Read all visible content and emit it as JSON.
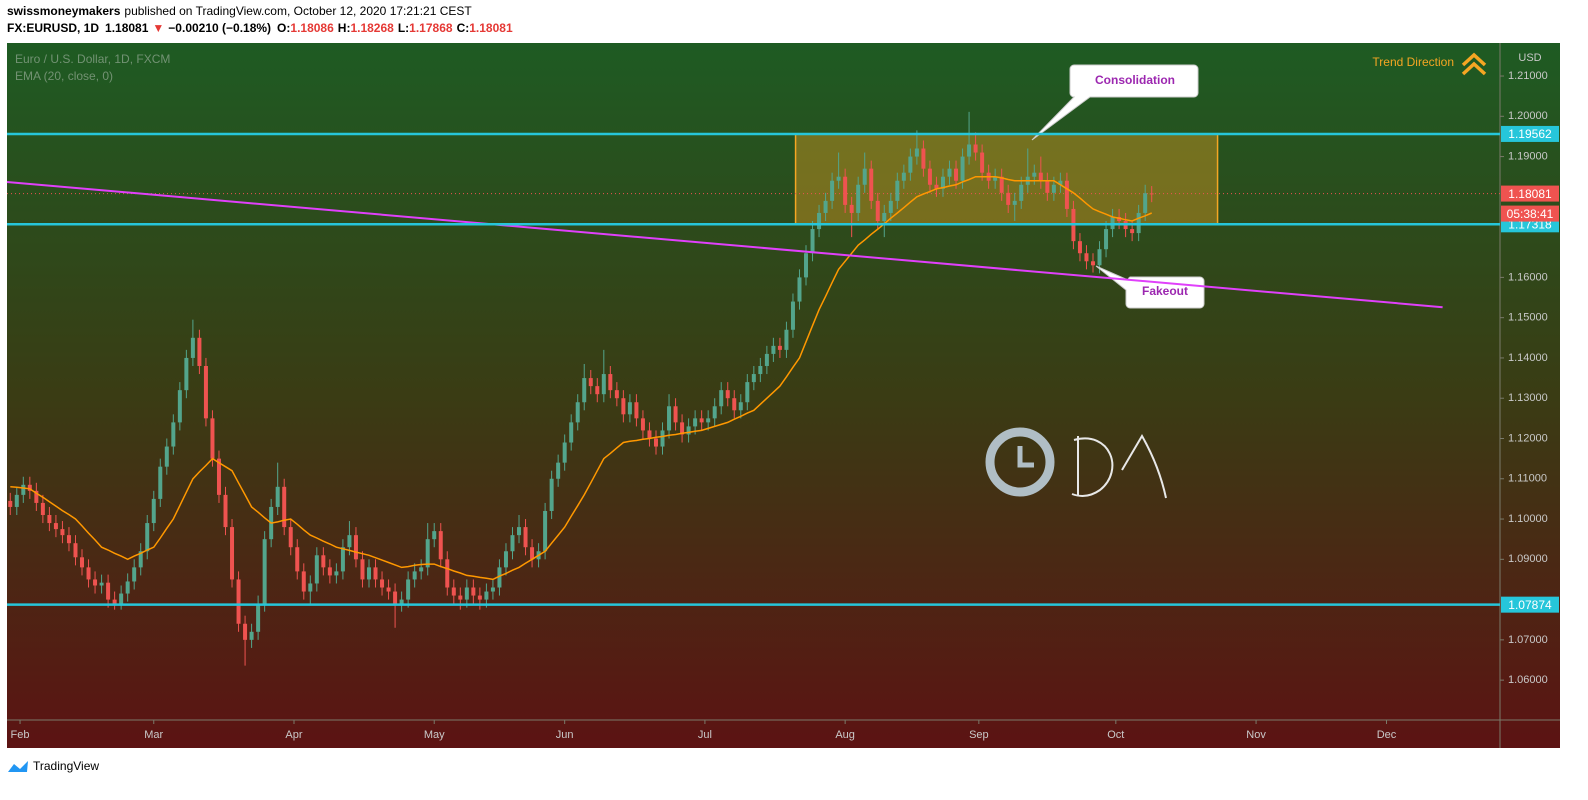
{
  "header": {
    "author": "swissmoneymakers",
    "published": "published on TradingView.com, October 12, 2020 17:21:21 CEST",
    "symbol": "FX:EURUSD, 1D",
    "last": 1.18081,
    "arrow": "▼",
    "change": "−0.00210 (−0.18%)",
    "ohlc": [
      {
        "label": "O:",
        "value": 1.18086
      },
      {
        "label": "H:",
        "value": 1.18268
      },
      {
        "label": "L:",
        "value": 1.17868
      },
      {
        "label": "C:",
        "value": 1.18081
      }
    ]
  },
  "footer": {
    "brand": "TradingView"
  },
  "chart_data": {
    "type": "candlestick",
    "title": "Euro / U.S. Dollar, 1D, FXCM",
    "y_unit": "USD",
    "up_color": "#53a58c",
    "down_color": "#ef5350",
    "open": [
      1.1045,
      1.103,
      1.106,
      1.1085,
      1.107,
      1.104,
      1.101,
      1.099,
      1.0975,
      1.096,
      1.094,
      1.0905,
      1.088,
      1.085,
      1.0835,
      1.0842,
      1.08,
      1.079,
      1.0815,
      1.0845,
      1.088,
      1.092,
      1.099,
      1.105,
      1.113,
      1.118,
      1.124,
      1.132,
      1.14,
      1.145,
      1.138,
      1.125,
      1.115,
      1.106,
      1.098,
      1.085,
      1.074,
      1.07,
      1.072,
      1.079,
      1.095,
      1.103,
      1.108,
      1.098,
      1.093,
      1.087,
      1.082,
      1.084,
      1.091,
      1.088,
      1.086,
      1.087,
      1.093,
      1.096,
      1.09,
      1.085,
      1.088,
      1.085,
      1.083,
      1.082,
      1.079,
      1.08,
      1.085,
      1.087,
      1.088,
      1.095,
      1.097,
      1.09,
      1.083,
      1.081,
      1.08,
      1.083,
      1.081,
      1.08,
      1.082,
      1.083,
      1.088,
      1.092,
      1.096,
      1.098,
      1.093,
      1.09,
      1.092,
      1.102,
      1.11,
      1.114,
      1.119,
      1.124,
      1.129,
      1.135,
      1.133,
      1.131,
      1.136,
      1.132,
      1.13,
      1.126,
      1.129,
      1.125,
      1.122,
      1.12,
      1.118,
      1.122,
      1.128,
      1.124,
      1.121,
      1.123,
      1.125,
      1.124,
      1.125,
      1.128,
      1.132,
      1.13,
      1.127,
      1.129,
      1.134,
      1.136,
      1.138,
      1.141,
      1.143,
      1.142,
      1.147,
      1.154,
      1.16,
      1.166,
      1.172,
      1.176,
      1.179,
      1.184,
      1.185,
      1.178,
      1.176,
      1.183,
      1.187,
      1.179,
      1.174,
      1.176,
      1.179,
      1.184,
      1.186,
      1.19,
      1.192,
      1.187,
      1.183,
      1.182,
      1.185,
      1.187,
      1.184,
      1.19,
      1.193,
      1.191,
      1.186,
      1.184,
      1.185,
      1.181,
      1.178,
      1.179,
      1.183,
      1.185,
      1.186,
      1.184,
      1.181,
      1.183,
      1.184,
      1.177,
      1.169,
      1.166,
      1.164,
      1.163,
      1.167,
      1.172,
      1.175,
      1.174,
      1.172,
      1.171,
      1.176,
      1.18086
    ],
    "high": [
      1.1065,
      1.108,
      1.1105,
      1.1105,
      1.109,
      1.106,
      1.103,
      1.101,
      1.0995,
      1.098,
      1.096,
      1.0925,
      1.09,
      1.087,
      1.0862,
      1.0862,
      1.082,
      1.0835,
      1.0865,
      1.09,
      1.094,
      1.101,
      1.107,
      1.115,
      1.12,
      1.126,
      1.134,
      1.142,
      1.1495,
      1.147,
      1.14,
      1.127,
      1.117,
      1.108,
      1.1,
      1.087,
      1.076,
      1.074,
      1.081,
      1.097,
      1.105,
      1.114,
      1.11,
      1.1,
      1.095,
      1.089,
      1.086,
      1.093,
      1.093,
      1.09,
      1.089,
      1.095,
      1.0995,
      1.098,
      1.092,
      1.09,
      1.09,
      1.087,
      1.085,
      1.084,
      1.082,
      1.087,
      1.089,
      1.09,
      1.099,
      1.099,
      1.099,
      1.092,
      1.085,
      1.083,
      1.085,
      1.085,
      1.083,
      1.084,
      1.085,
      1.09,
      1.094,
      1.098,
      1.101,
      1.1,
      1.095,
      1.094,
      1.104,
      1.112,
      1.116,
      1.121,
      1.126,
      1.131,
      1.1385,
      1.137,
      1.135,
      1.142,
      1.138,
      1.134,
      1.132,
      1.131,
      1.131,
      1.127,
      1.124,
      1.122,
      1.124,
      1.131,
      1.13,
      1.126,
      1.125,
      1.127,
      1.127,
      1.127,
      1.13,
      1.134,
      1.134,
      1.132,
      1.131,
      1.136,
      1.138,
      1.14,
      1.143,
      1.145,
      1.145,
      1.149,
      1.156,
      1.162,
      1.168,
      1.174,
      1.178,
      1.181,
      1.186,
      1.191,
      1.187,
      1.18,
      1.185,
      1.191,
      1.189,
      1.181,
      1.178,
      1.181,
      1.186,
      1.188,
      1.192,
      1.1965,
      1.194,
      1.189,
      1.185,
      1.187,
      1.189,
      1.189,
      1.192,
      1.2011,
      1.196,
      1.193,
      1.188,
      1.187,
      1.187,
      1.183,
      1.181,
      1.185,
      1.192,
      1.188,
      1.19,
      1.186,
      1.185,
      1.186,
      1.186,
      1.179,
      1.171,
      1.168,
      1.166,
      1.169,
      1.174,
      1.177,
      1.177,
      1.176,
      1.174,
      1.178,
      1.183,
      1.18268
    ],
    "low": [
      1.101,
      1.101,
      1.104,
      1.105,
      1.102,
      1.099,
      1.097,
      1.0955,
      1.094,
      1.092,
      1.0885,
      1.086,
      1.083,
      1.0815,
      1.0815,
      1.078,
      1.0775,
      1.0775,
      1.0795,
      1.0825,
      1.086,
      1.09,
      1.097,
      1.103,
      1.111,
      1.116,
      1.122,
      1.13,
      1.138,
      1.136,
      1.123,
      1.113,
      1.104,
      1.096,
      1.083,
      1.072,
      1.0636,
      1.068,
      1.07,
      1.077,
      1.093,
      1.101,
      1.096,
      1.091,
      1.085,
      1.08,
      1.079,
      1.082,
      1.086,
      1.084,
      1.084,
      1.085,
      1.091,
      1.088,
      1.083,
      1.083,
      1.083,
      1.081,
      1.08,
      1.073,
      1.077,
      1.078,
      1.083,
      1.085,
      1.086,
      1.093,
      1.088,
      1.081,
      1.079,
      1.0775,
      1.078,
      1.079,
      1.0775,
      1.078,
      1.08,
      1.081,
      1.086,
      1.09,
      1.094,
      1.091,
      1.088,
      1.088,
      1.09,
      1.1,
      1.108,
      1.112,
      1.117,
      1.122,
      1.127,
      1.131,
      1.129,
      1.129,
      1.13,
      1.128,
      1.124,
      1.124,
      1.123,
      1.12,
      1.118,
      1.116,
      1.116,
      1.12,
      1.122,
      1.119,
      1.119,
      1.121,
      1.122,
      1.122,
      1.123,
      1.126,
      1.128,
      1.125,
      1.125,
      1.127,
      1.132,
      1.134,
      1.136,
      1.139,
      1.14,
      1.14,
      1.145,
      1.152,
      1.158,
      1.164,
      1.17,
      1.174,
      1.177,
      1.182,
      1.176,
      1.17,
      1.174,
      1.181,
      1.177,
      1.172,
      1.17,
      1.174,
      1.177,
      1.182,
      1.184,
      1.188,
      1.185,
      1.181,
      1.18,
      1.18,
      1.183,
      1.182,
      1.182,
      1.188,
      1.189,
      1.184,
      1.182,
      1.182,
      1.179,
      1.176,
      1.174,
      1.177,
      1.181,
      1.183,
      1.182,
      1.179,
      1.179,
      1.181,
      1.175,
      1.167,
      1.164,
      1.162,
      1.1612,
      1.161,
      1.165,
      1.17,
      1.172,
      1.17,
      1.169,
      1.169,
      1.174,
      1.17868
    ],
    "close": [
      1.103,
      1.106,
      1.1085,
      1.107,
      1.104,
      1.101,
      1.099,
      1.0975,
      1.096,
      1.094,
      1.0905,
      1.088,
      1.085,
      1.0835,
      1.0842,
      1.08,
      1.079,
      1.0815,
      1.0845,
      1.088,
      1.092,
      1.099,
      1.105,
      1.113,
      1.118,
      1.124,
      1.132,
      1.14,
      1.145,
      1.138,
      1.125,
      1.115,
      1.106,
      1.098,
      1.085,
      1.074,
      1.07,
      1.072,
      1.079,
      1.095,
      1.103,
      1.108,
      1.098,
      1.093,
      1.087,
      1.082,
      1.084,
      1.091,
      1.088,
      1.086,
      1.087,
      1.093,
      1.096,
      1.09,
      1.085,
      1.088,
      1.085,
      1.083,
      1.082,
      1.079,
      1.08,
      1.085,
      1.087,
      1.088,
      1.095,
      1.097,
      1.09,
      1.083,
      1.081,
      1.08,
      1.083,
      1.081,
      1.08,
      1.082,
      1.083,
      1.088,
      1.092,
      1.096,
      1.098,
      1.093,
      1.09,
      1.092,
      1.102,
      1.11,
      1.114,
      1.119,
      1.124,
      1.129,
      1.135,
      1.133,
      1.131,
      1.136,
      1.132,
      1.13,
      1.126,
      1.129,
      1.125,
      1.122,
      1.12,
      1.118,
      1.122,
      1.128,
      1.124,
      1.121,
      1.123,
      1.125,
      1.124,
      1.125,
      1.128,
      1.132,
      1.13,
      1.127,
      1.129,
      1.134,
      1.136,
      1.138,
      1.141,
      1.143,
      1.142,
      1.147,
      1.154,
      1.16,
      1.166,
      1.172,
      1.176,
      1.179,
      1.184,
      1.185,
      1.178,
      1.176,
      1.183,
      1.187,
      1.179,
      1.174,
      1.176,
      1.179,
      1.184,
      1.186,
      1.19,
      1.192,
      1.187,
      1.183,
      1.182,
      1.185,
      1.187,
      1.184,
      1.19,
      1.193,
      1.191,
      1.186,
      1.184,
      1.185,
      1.181,
      1.178,
      1.179,
      1.183,
      1.185,
      1.186,
      1.184,
      1.181,
      1.183,
      1.184,
      1.177,
      1.169,
      1.166,
      1.164,
      1.163,
      1.167,
      1.172,
      1.175,
      1.174,
      1.172,
      1.171,
      1.176,
      1.1809,
      1.18081
    ],
    "ema": {
      "name": "EMA (20, close, 0)",
      "color": "#ff9800",
      "values": [
        1.108,
        1.1079,
        1.1077,
        1.1075,
        1.1064,
        1.1054,
        1.1043,
        1.1032,
        1.1021,
        1.1011,
        1.1,
        1.0983,
        1.0965,
        1.0948,
        1.093,
        1.0923,
        1.0915,
        1.0908,
        1.09,
        1.0908,
        1.0915,
        1.0923,
        1.093,
        1.0953,
        1.0977,
        1.1,
        1.1033,
        1.1067,
        1.11,
        1.1117,
        1.1133,
        1.115,
        1.114,
        1.113,
        1.112,
        1.109,
        1.106,
        1.103,
        1.1017,
        1.1003,
        1.099,
        1.0993,
        1.0997,
        1.1,
        1.0987,
        1.0973,
        1.096,
        1.0953,
        1.0945,
        1.0938,
        1.093,
        1.0926,
        1.0922,
        1.0918,
        1.0914,
        1.091,
        1.0904,
        1.0898,
        1.0892,
        1.0886,
        1.088,
        1.0882,
        1.0885,
        1.0887,
        1.0888,
        1.0888,
        1.0882,
        1.0877,
        1.0871,
        1.0866,
        1.086,
        1.0858,
        1.0855,
        1.0853,
        1.085,
        1.0858,
        1.0865,
        1.0873,
        1.088,
        1.089,
        1.09,
        1.091,
        1.092,
        1.094,
        1.096,
        1.098,
        1.1007,
        1.1033,
        1.106,
        1.109,
        1.112,
        1.115,
        1.1163,
        1.1177,
        1.119,
        1.1193,
        1.1195,
        1.1198,
        1.12,
        1.1203,
        1.1205,
        1.1208,
        1.121,
        1.1213,
        1.1215,
        1.1218,
        1.122,
        1.1225,
        1.123,
        1.1235,
        1.124,
        1.1248,
        1.1255,
        1.1263,
        1.127,
        1.1285,
        1.13,
        1.1315,
        1.133,
        1.1353,
        1.1377,
        1.14,
        1.144,
        1.148,
        1.152,
        1.1553,
        1.1587,
        1.162,
        1.164,
        1.166,
        1.168,
        1.1693,
        1.1707,
        1.172,
        1.1733,
        1.1747,
        1.176,
        1.1773,
        1.1787,
        1.18,
        1.1807,
        1.1813,
        1.182,
        1.1823,
        1.1827,
        1.183,
        1.1837,
        1.1843,
        1.185,
        1.185,
        1.185,
        1.185,
        1.1847,
        1.1843,
        1.184,
        1.184,
        1.184,
        1.184,
        1.184,
        1.184,
        1.184,
        1.183,
        1.182,
        1.181,
        1.1797,
        1.1783,
        1.177,
        1.1763,
        1.1757,
        1.175,
        1.1747,
        1.1743,
        1.174,
        1.1747,
        1.1753,
        1.176
      ]
    },
    "xlim": [
      -0.5,
      228.4
    ],
    "ylim": [
      1.0501,
      1.2182
    ],
    "xticks": [
      {
        "value": 1.5,
        "label": "Feb"
      },
      {
        "value": 22,
        "label": "Mar"
      },
      {
        "value": 43.5,
        "label": "Apr"
      },
      {
        "value": 65,
        "label": "May"
      },
      {
        "value": 85,
        "label": "Jun"
      },
      {
        "value": 106.5,
        "label": "Jul"
      },
      {
        "value": 128,
        "label": "Aug"
      },
      {
        "value": 148.5,
        "label": "Sep"
      },
      {
        "value": 169.5,
        "label": "Oct"
      },
      {
        "value": 191,
        "label": "Nov"
      },
      {
        "value": 211,
        "label": "Dec"
      }
    ],
    "yticks": [
      {
        "value": 1.06,
        "label": "1.06000"
      },
      {
        "value": 1.07,
        "label": "1.07000"
      },
      {
        "value": 1.09,
        "label": "1.09000"
      },
      {
        "value": 1.1,
        "label": "1.10000"
      },
      {
        "value": 1.11,
        "label": "1.11000"
      },
      {
        "value": 1.12,
        "label": "1.12000"
      },
      {
        "value": 1.13,
        "label": "1.13000"
      },
      {
        "value": 1.14,
        "label": "1.14000"
      },
      {
        "value": 1.15,
        "label": "1.15000"
      },
      {
        "value": 1.16,
        "label": "1.16000"
      },
      {
        "value": 1.19,
        "label": "1.19000"
      },
      {
        "value": 1.2,
        "label": "1.20000"
      },
      {
        "value": 1.21,
        "label": "1.21000"
      }
    ],
    "levels": [
      {
        "value": 1.19562,
        "color": "#26c6da"
      },
      {
        "value": 1.17318,
        "color": "#26c6da"
      },
      {
        "value": 1.07874,
        "color": "#26c6da"
      }
    ],
    "last_price": {
      "value": 1.18081,
      "countdown": "05:38:41",
      "color": "#ef5350"
    },
    "box": {
      "x": [
        120.4,
        185.1
      ],
      "low": 1.17318,
      "high": 1.19562,
      "color": "#f5a623"
    },
    "trendline": {
      "x": [
        -0.5,
        219.6
      ],
      "y": [
        1.1837,
        1.1526
      ],
      "color": "#e040fb"
    },
    "annotations": [
      {
        "text": "Consolidation",
        "color": "#9c27b0"
      },
      {
        "text": "Fakeout",
        "color": "#9c27b0"
      }
    ],
    "trend_label": {
      "text": "Trend Direction",
      "color": "#f5a623"
    }
  }
}
